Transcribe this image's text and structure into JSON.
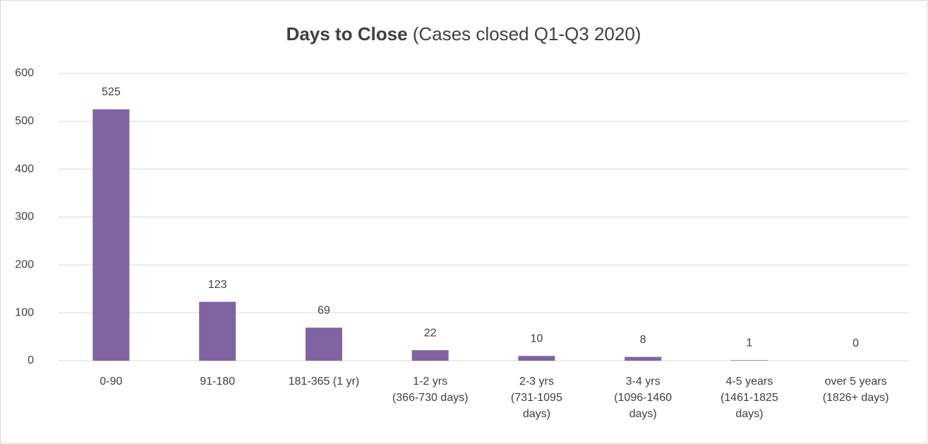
{
  "chart_data": {
    "type": "bar",
    "title": "Days to Close",
    "subtitle": "(Cases closed Q1-Q3 2020)",
    "categories": [
      [
        "0-90"
      ],
      [
        "91-180"
      ],
      [
        "181-365 (1 yr)"
      ],
      [
        "1-2 yrs",
        "(366-730 days)"
      ],
      [
        "2-3 yrs",
        "(731-1095",
        "days)"
      ],
      [
        "3-4 yrs",
        "(1096-1460",
        "days)"
      ],
      [
        "4-5 years",
        "(1461-1825",
        "days)"
      ],
      [
        "over 5 years",
        "(1826+ days)"
      ]
    ],
    "values": [
      525,
      123,
      69,
      22,
      10,
      8,
      1,
      0
    ],
    "color": "#8064a2",
    "ylim": [
      0,
      600
    ],
    "yticks": [
      0,
      100,
      200,
      300,
      400,
      500,
      600
    ],
    "grid": true,
    "data_labels": true
  }
}
